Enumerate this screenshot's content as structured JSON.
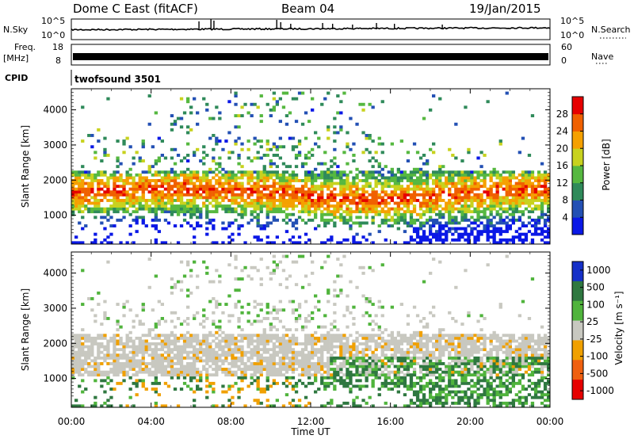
{
  "header": {
    "station": "Dome C East (fitACF)",
    "beam": "Beam 04",
    "date": "19/Jan/2015"
  },
  "top_panels": {
    "nsky_label": "N.Sky",
    "nsky_ticks": [
      "10^5",
      "10^0"
    ],
    "nsearch_label": "N.Search",
    "nsearch_ticks": [
      "10^5",
      "10^0"
    ],
    "freq_label": "Freq.",
    "freq_unit": "[MHz]",
    "freq_ticks": [
      "18",
      "8"
    ],
    "nave_label": "Nave",
    "nave_ticks": [
      "60",
      "0"
    ],
    "cpid_label": "CPID",
    "cpid_value": "twofsound 3501"
  },
  "colors": {
    "power_scale": [
      "#0a18e6",
      "#2350b4",
      "#2f8a5a",
      "#56b840",
      "#c8d21e",
      "#f5a000",
      "#f06000",
      "#e60000"
    ],
    "velocity_scale": [
      "#1530c8",
      "#2f7840",
      "#50b43c",
      "#c8c8c0",
      "#f0a000",
      "#f06010",
      "#e60000"
    ]
  },
  "chart_data": [
    {
      "type": "heatmap",
      "quantity": "Power",
      "xlabel": "",
      "ylabel": "Slant Range [km]",
      "x_ticks": [
        "00:00",
        "04:00",
        "08:00",
        "12:00",
        "16:00",
        "20:00",
        "00:00"
      ],
      "x_range_hours": [
        0,
        24
      ],
      "y_ticks": [
        1000,
        2000,
        3000,
        4000
      ],
      "y_range": [
        180,
        4600
      ],
      "colorbar_label": "Power [dB]",
      "colorbar_ticks": [
        4,
        8,
        12,
        16,
        20,
        24,
        28
      ],
      "colorbar_range": [
        0,
        32
      ]
    },
    {
      "type": "heatmap",
      "quantity": "Velocity",
      "xlabel": "Time UT",
      "ylabel": "Slant Range [km]",
      "x_ticks": [
        "00:00",
        "04:00",
        "08:00",
        "12:00",
        "16:00",
        "20:00",
        "00:00"
      ],
      "x_range_hours": [
        0,
        24
      ],
      "y_ticks": [
        1000,
        2000,
        3000,
        4000
      ],
      "y_range": [
        180,
        4600
      ],
      "colorbar_label": "Velocity [m s⁻¹]",
      "colorbar_ticks": [
        1000,
        500,
        100,
        25,
        -25,
        -100,
        -500,
        -1000
      ]
    }
  ]
}
